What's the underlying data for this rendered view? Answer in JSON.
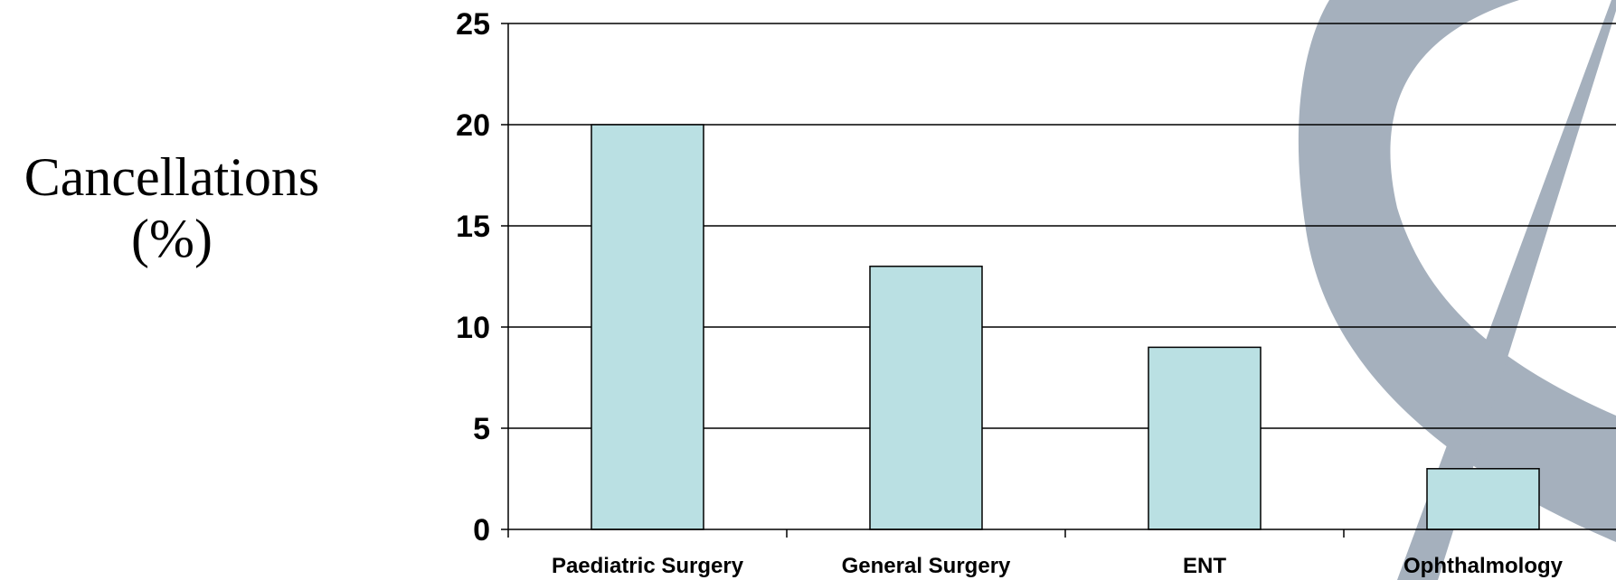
{
  "chart_data": {
    "type": "bar",
    "title": "",
    "xlabel": "",
    "ylabel_line1": "Cancellations",
    "ylabel_line2": "(%)",
    "categories": [
      "Paediatric Surgery",
      "General Surgery",
      "ENT",
      "Ophthalmology"
    ],
    "values": [
      20,
      13,
      9,
      3
    ],
    "ylim": [
      0,
      25
    ],
    "yticks": [
      0,
      5,
      10,
      15,
      20,
      25
    ],
    "grid": true,
    "legend": "none",
    "bar_color": "#bae0e3",
    "watermark_color": "#8c9aab"
  }
}
